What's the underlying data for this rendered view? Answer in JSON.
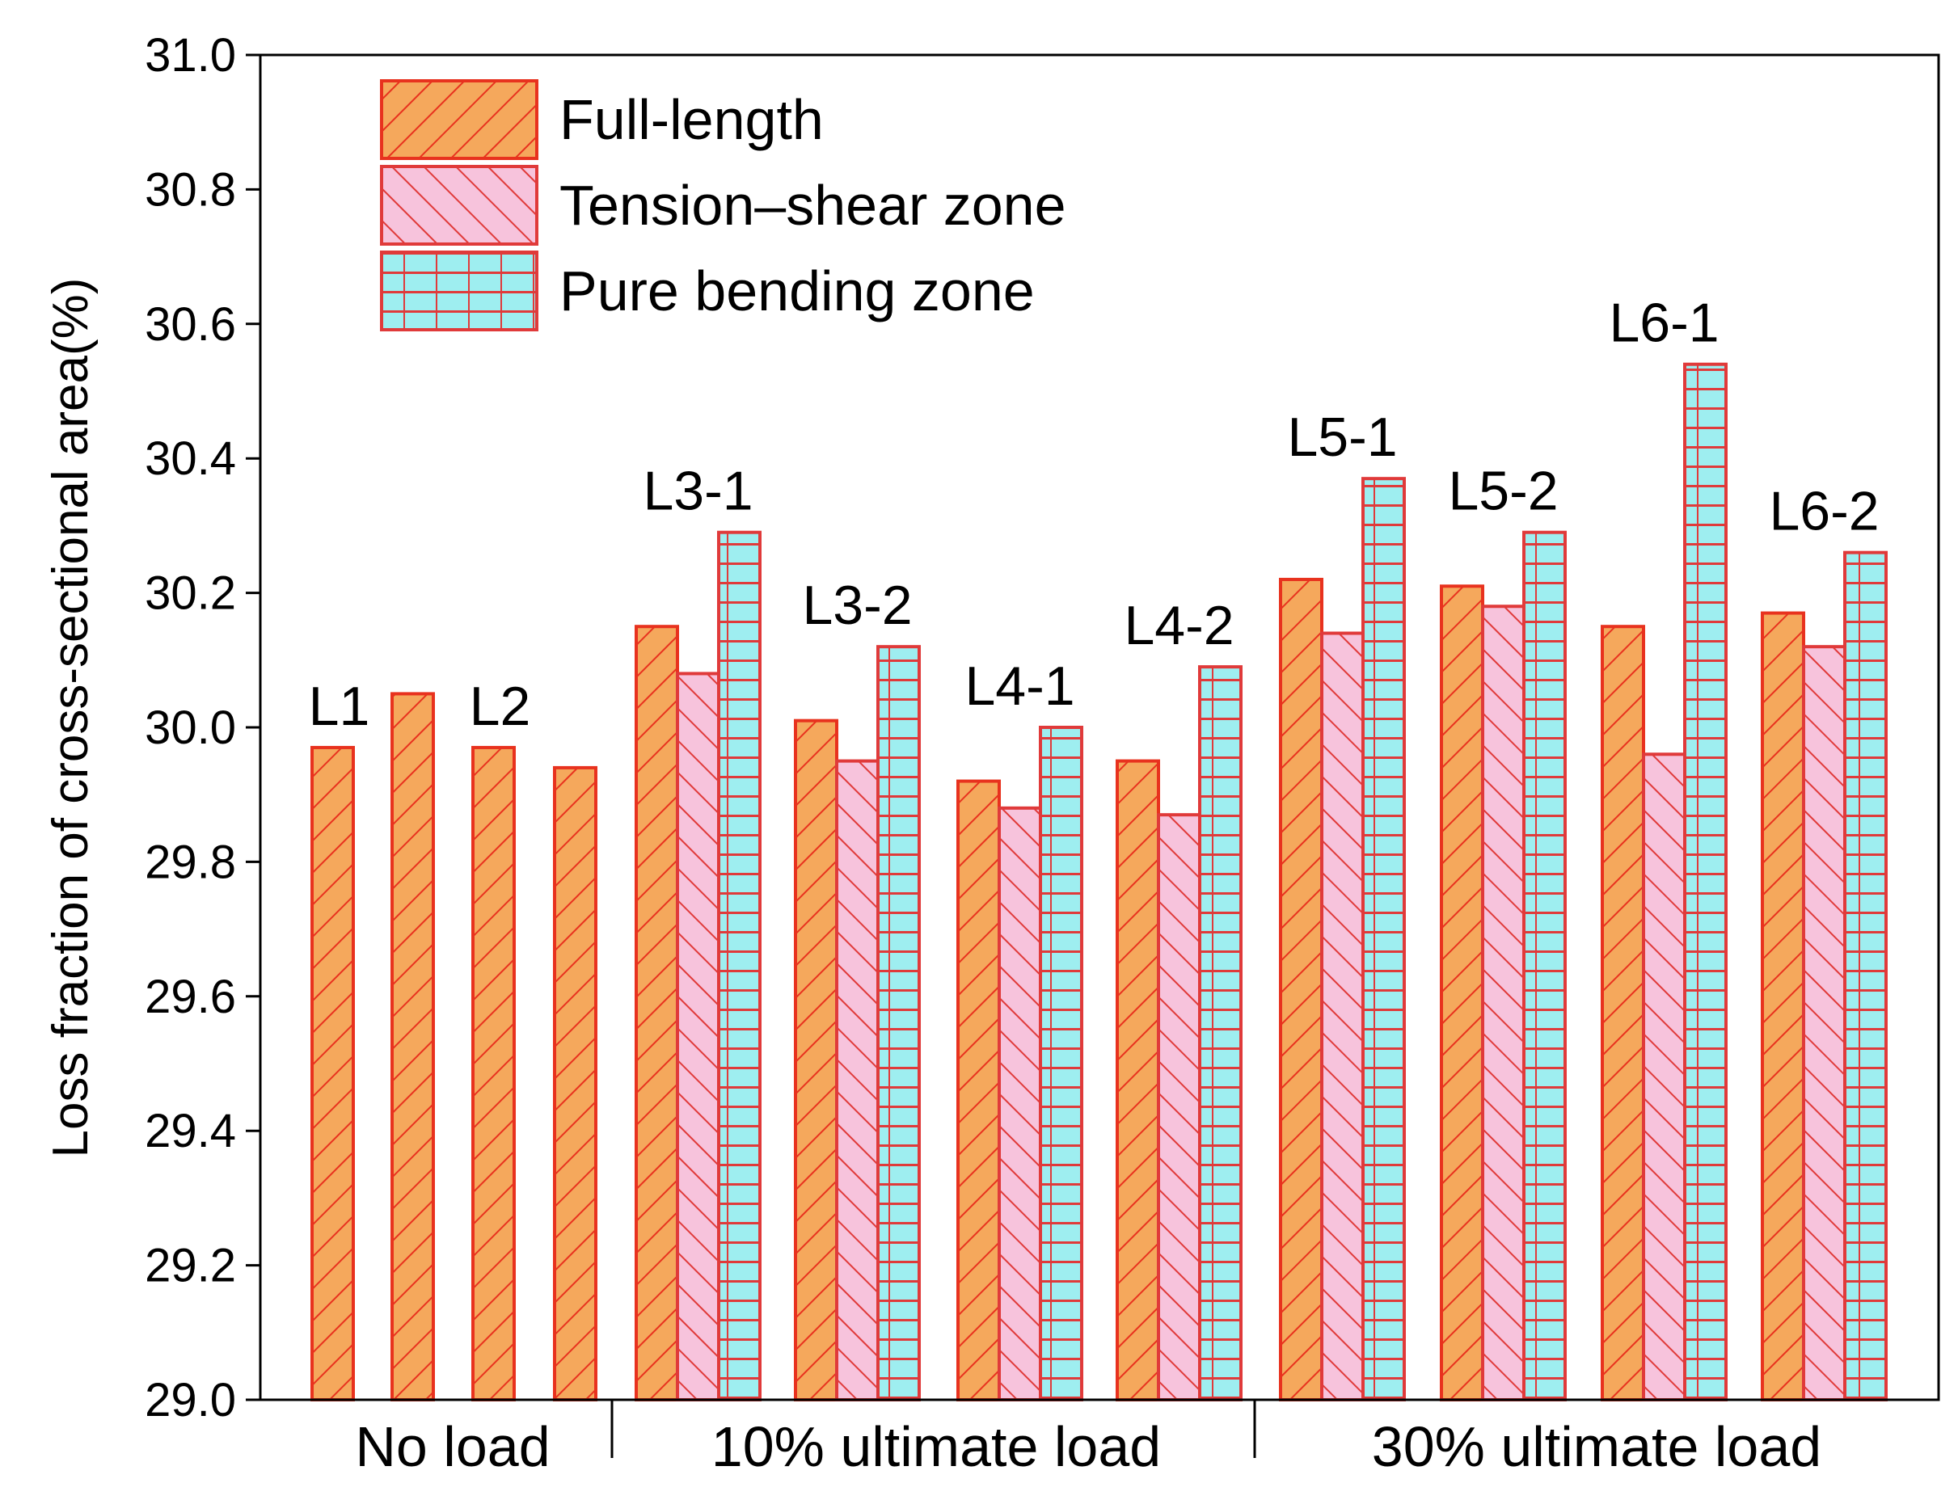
{
  "chart_data": {
    "type": "bar",
    "ylabel": "Loss fraction of cross-sectional area(%)",
    "ylim": [
      29.0,
      31.0
    ],
    "yticks": [
      "29.0",
      "29.2",
      "29.4",
      "29.6",
      "29.8",
      "30.0",
      "30.2",
      "30.4",
      "30.6",
      "30.8",
      "31.0"
    ],
    "colors": {
      "full_length_fill": "#F5A85C",
      "full_length_stroke": "#E8321E",
      "tension_fill": "#F7C3DC",
      "tension_stroke": "#E03A3A",
      "bending_fill": "#9EEEF0",
      "bending_stroke": "#E03A3A",
      "axis": "#000000"
    },
    "legend": [
      {
        "key": "full",
        "label": "Full-length"
      },
      {
        "key": "tension",
        "label": "Tension–shear zone"
      },
      {
        "key": "bending",
        "label": "Pure bending zone"
      }
    ],
    "groups": [
      {
        "label": "No load"
      },
      {
        "label": "10% ultimate load"
      },
      {
        "label": "30% ultimate load"
      }
    ],
    "specimens": [
      {
        "label": "L1",
        "values": {
          "full": 29.97
        }
      },
      {
        "label": "",
        "values": {
          "full": 30.05
        }
      },
      {
        "label": "L2",
        "values": {
          "full": 29.97
        }
      },
      {
        "label": "",
        "values": {
          "full": 29.94
        }
      },
      {
        "label": "L3-1",
        "values": {
          "full": 30.15,
          "tension": 30.08,
          "bending": 30.29
        }
      },
      {
        "label": "L3-2",
        "values": {
          "full": 30.01,
          "tension": 29.95,
          "bending": 30.12
        }
      },
      {
        "label": "L4-1",
        "values": {
          "full": 29.92,
          "tension": 29.88,
          "bending": 30.0
        }
      },
      {
        "label": "L4-2",
        "values": {
          "full": 29.95,
          "tension": 29.87,
          "bending": 30.09
        }
      },
      {
        "label": "L5-1",
        "values": {
          "full": 30.22,
          "tension": 30.14,
          "bending": 30.37
        }
      },
      {
        "label": "L5-2",
        "values": {
          "full": 30.21,
          "tension": 30.18,
          "bending": 30.29
        }
      },
      {
        "label": "L6-1",
        "values": {
          "full": 30.15,
          "tension": 29.96,
          "bending": 30.54
        }
      },
      {
        "label": "L6-2",
        "values": {
          "full": 30.17,
          "tension": 30.12,
          "bending": 30.26
        }
      }
    ]
  }
}
